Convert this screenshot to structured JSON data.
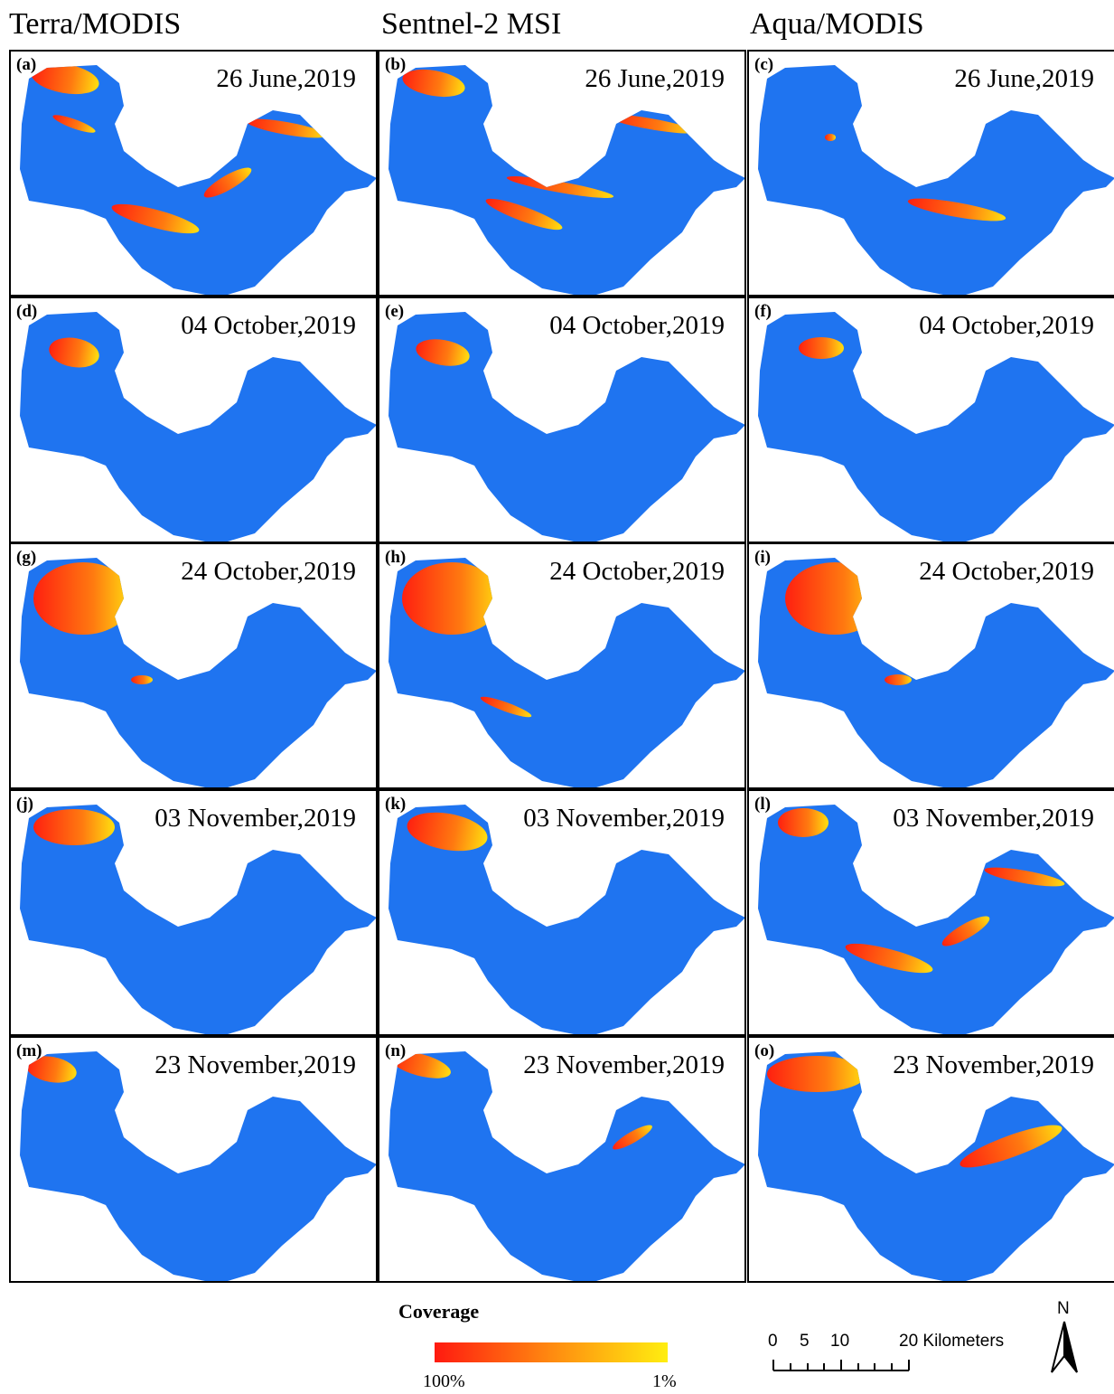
{
  "columns": [
    "Terra/MODIS",
    "Sentnel-2 MSI",
    "Aqua/MODIS"
  ],
  "panels": [
    {
      "label": "(a)",
      "date": "26 June,2019"
    },
    {
      "label": "(b)",
      "date": "26 June,2019"
    },
    {
      "label": "(c)",
      "date": "26 June,2019"
    },
    {
      "label": "(d)",
      "date": "04 October,2019"
    },
    {
      "label": "(e)",
      "date": "04 October,2019"
    },
    {
      "label": "(f)",
      "date": "04 October,2019"
    },
    {
      "label": "(g)",
      "date": "24 October,2019"
    },
    {
      "label": "(h)",
      "date": "24 October,2019"
    },
    {
      "label": "(i)",
      "date": "24 October,2019"
    },
    {
      "label": "(j)",
      "date": "03 November,2019"
    },
    {
      "label": "(k)",
      "date": "03 November,2019"
    },
    {
      "label": "(l)",
      "date": "03 November,2019"
    },
    {
      "label": "(m)",
      "date": "23 November,2019"
    },
    {
      "label": "(n)",
      "date": "23 November,2019"
    },
    {
      "label": "(o)",
      "date": "23 November,2019"
    }
  ],
  "legend": {
    "title": "Coverage",
    "min_label": "100%",
    "max_label": "1%"
  },
  "scale_bar": {
    "labels": [
      "0",
      "5",
      "10",
      "20 Kilometers"
    ]
  },
  "north": "N"
}
